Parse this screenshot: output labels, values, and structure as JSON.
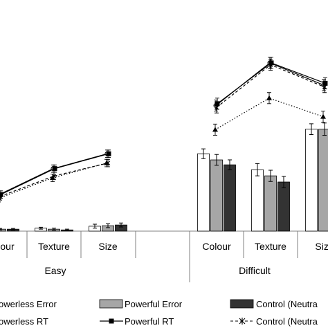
{
  "chart_data": {
    "type": "bar",
    "groups": [
      {
        "label": "Easy",
        "categories": [
          "Colour",
          "Texture",
          "Size"
        ]
      },
      {
        "label": "Difficult",
        "categories": [
          "Colour",
          "Texture",
          "Size"
        ]
      }
    ],
    "error_series": [
      {
        "name": "Powerless Error",
        "color": "#ffffff",
        "values": [
          0.5,
          1.2,
          2.0,
          31.5,
          25.0,
          41.5
        ],
        "err": [
          0.3,
          0.4,
          0.8,
          2.0,
          2.5,
          2.2
        ]
      },
      {
        "name": "Powerful Error",
        "color": "#a6a6a6",
        "values": [
          0.8,
          0.8,
          2.2,
          29.0,
          22.5,
          41.5
        ],
        "err": [
          0.3,
          0.4,
          0.8,
          2.2,
          2.3,
          2.5
        ]
      },
      {
        "name": "Control (Neutral) Error",
        "color": "#333333",
        "values": [
          0.8,
          0.5,
          2.5,
          27.0,
          20.0,
          0
        ],
        "err": [
          0.3,
          0.3,
          0.8,
          2.0,
          2.3,
          0
        ]
      }
    ],
    "rt_series": [
      {
        "name": "Powerless RT",
        "marker": "circle",
        "dash": "solid",
        "values": [
          38,
          52,
          60,
          86,
          109,
          97
        ],
        "err": [
          2,
          2,
          2,
          3,
          3,
          3
        ]
      },
      {
        "name": "Powerful RT",
        "marker": "square",
        "dash": "solid",
        "values": [
          38,
          52,
          60,
          87,
          109,
          98
        ],
        "err": [
          2,
          2,
          2,
          3,
          3,
          3
        ]
      },
      {
        "name": "Control (Neutral) RT",
        "marker": "x",
        "dash": "dashed",
        "values": [
          37,
          48,
          55,
          85,
          108,
          96
        ],
        "err": [
          2,
          2,
          2,
          3,
          3,
          3
        ]
      },
      {
        "name": "",
        "marker": "triangle",
        "dash": "dotted",
        "values": [
          36,
          47,
          55,
          73,
          90,
          80
        ],
        "err": [
          2,
          2,
          2,
          3,
          3,
          3
        ]
      }
    ],
    "legend": {
      "row1": [
        "owerless Error",
        "Powerful Error",
        "Control (Neutra"
      ],
      "row2": [
        "owerless RT",
        "Powerful RT",
        "Control (Neutra"
      ]
    },
    "legend_placement": "bottom"
  }
}
